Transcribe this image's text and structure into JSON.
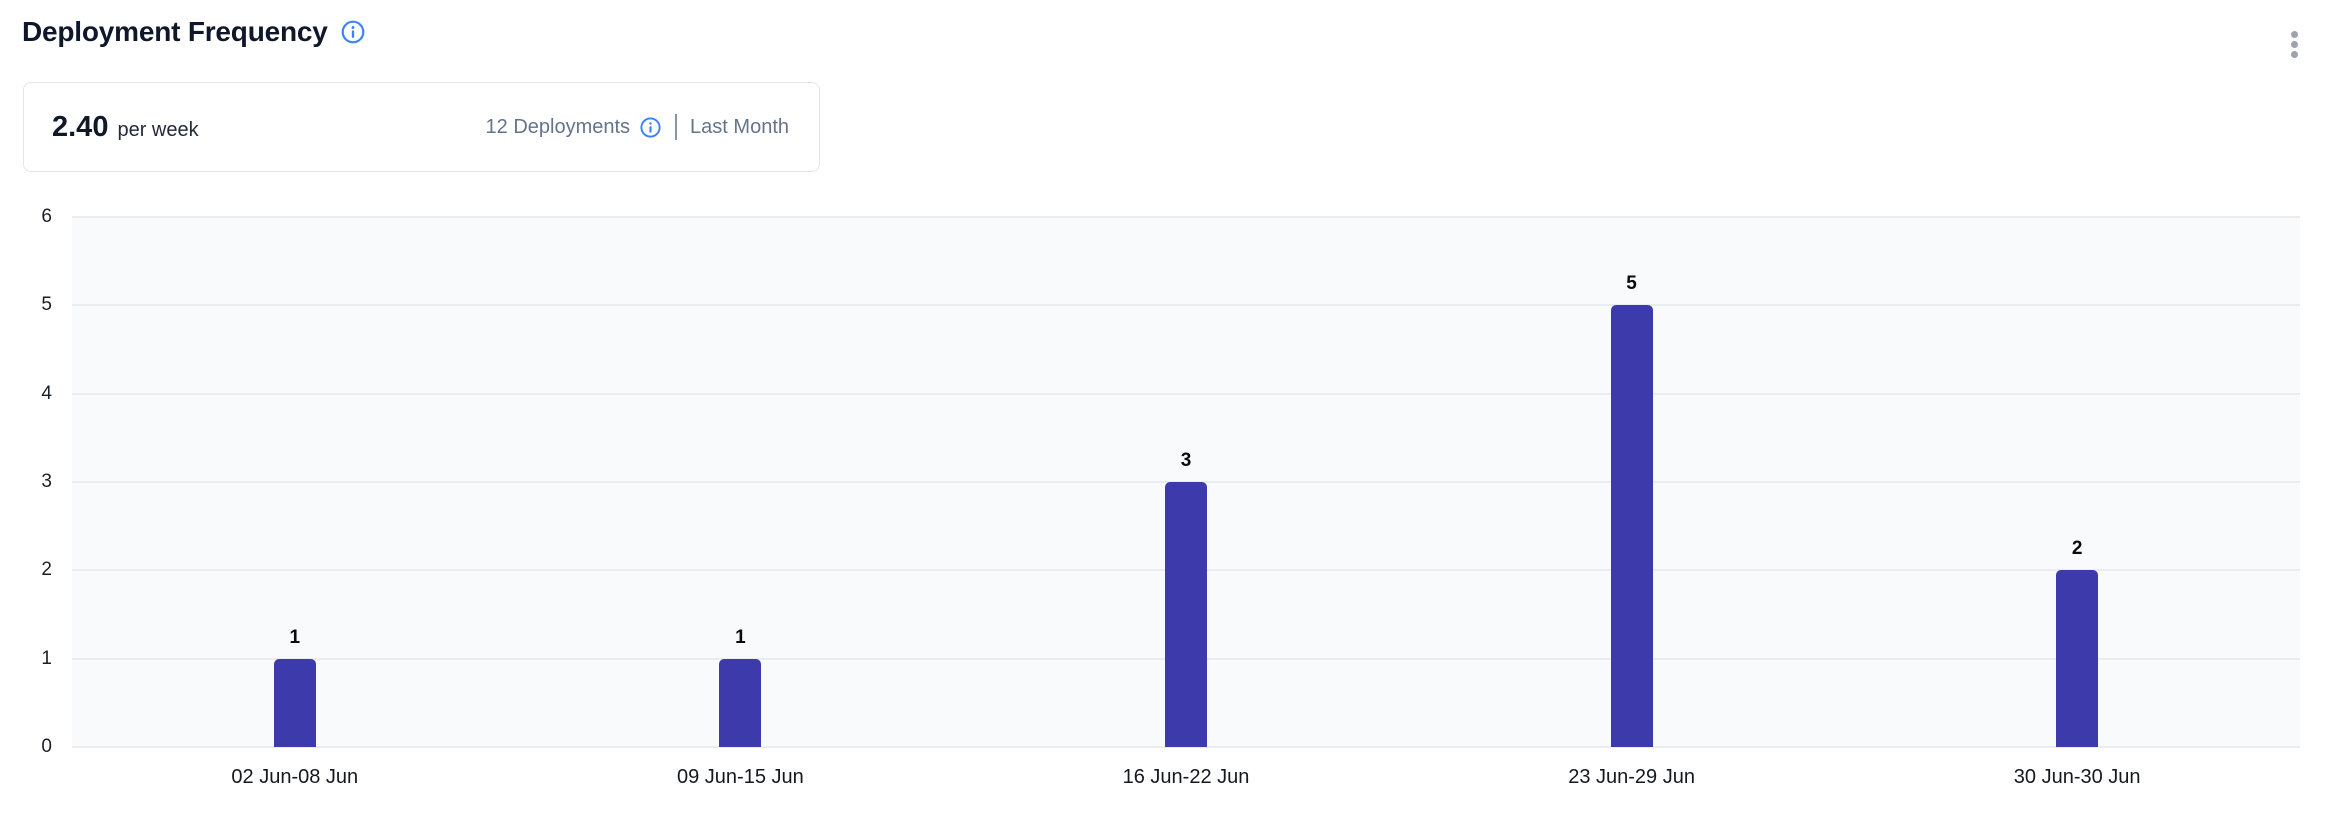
{
  "header": {
    "title": "Deployment Frequency"
  },
  "summary": {
    "value": "2.40",
    "unit": "per week",
    "deployments_label": "12 Deployments",
    "period_label": "Last Month"
  },
  "icons": {
    "title_info": "info-icon",
    "deployments_info": "info-icon",
    "menu": "kebab-menu-icon"
  },
  "colors": {
    "bar": "#3d3bac",
    "info_blue": "#3b82f6",
    "plot_background": "#f8fafc",
    "gridline": "#e9ecf1",
    "muted_text": "#64748b",
    "kebab_dots": "#9ca3af"
  },
  "chart_data": {
    "type": "bar",
    "title": "Deployment Frequency",
    "categories": [
      "02 Jun-08 Jun",
      "09 Jun-15 Jun",
      "16 Jun-22 Jun",
      "23 Jun-29 Jun",
      "30 Jun-30 Jun"
    ],
    "values": [
      1,
      1,
      3,
      5,
      2
    ],
    "value_labels": [
      "1",
      "1",
      "3",
      "5",
      "2"
    ],
    "y_ticks": [
      0,
      1,
      2,
      3,
      4,
      5,
      6
    ],
    "ylim": [
      0,
      6
    ],
    "xlabel": "",
    "ylabel": "",
    "grid": true,
    "legend": "none",
    "bar_color": "#3d3bac"
  }
}
